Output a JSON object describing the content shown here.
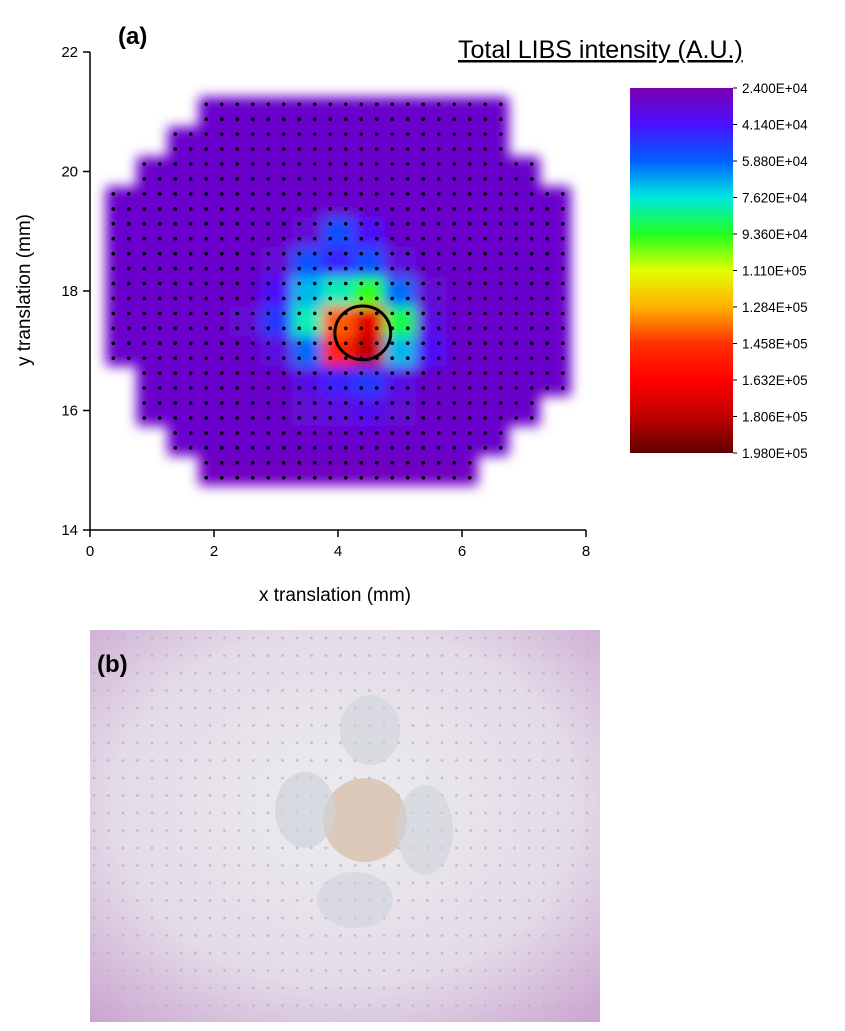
{
  "chart_data": {
    "type": "heatmap",
    "panel_label": "(a)",
    "xlabel": "x translation (mm)",
    "ylabel": "y translation (mm)",
    "xlim": [
      0,
      8
    ],
    "xticks": [
      0,
      2,
      4,
      6,
      8
    ],
    "ylim": [
      14,
      22
    ],
    "yticks": [
      14,
      16,
      18,
      20,
      22
    ],
    "x": [
      0.5,
      1.0,
      1.5,
      2.0,
      2.5,
      3.0,
      3.5,
      4.0,
      4.5,
      5.0,
      5.5,
      6.0,
      6.5,
      7.0,
      7.5
    ],
    "y": [
      15.0,
      15.5,
      16.0,
      16.5,
      17.0,
      17.5,
      18.0,
      18.5,
      19.0,
      19.5,
      20.0,
      20.5,
      21.0
    ],
    "z": [
      [
        null,
        null,
        null,
        28000,
        28000,
        28000,
        28000,
        28000,
        28000,
        28000,
        28000,
        28000,
        null,
        null,
        null
      ],
      [
        null,
        null,
        30000,
        30000,
        30000,
        30000,
        30000,
        30000,
        30000,
        30000,
        30000,
        30000,
        30000,
        null,
        null
      ],
      [
        null,
        30000,
        30000,
        30000,
        30000,
        30000,
        32000,
        34000,
        38000,
        32000,
        30000,
        30000,
        30000,
        30000,
        null
      ],
      [
        null,
        30000,
        30000,
        30000,
        30000,
        30000,
        36000,
        45000,
        50000,
        36000,
        30000,
        30000,
        30000,
        30000,
        30000
      ],
      [
        30000,
        30000,
        30000,
        30000,
        30000,
        35000,
        60000,
        150000,
        180000,
        70000,
        40000,
        30000,
        30000,
        30000,
        30000
      ],
      [
        30000,
        30000,
        30000,
        30000,
        32000,
        50000,
        80000,
        140000,
        170000,
        90000,
        35000,
        30000,
        30000,
        30000,
        30000
      ],
      [
        30000,
        30000,
        30000,
        30000,
        30000,
        40000,
        70000,
        80000,
        95000,
        60000,
        32000,
        30000,
        30000,
        30000,
        30000
      ],
      [
        30000,
        30000,
        30000,
        30000,
        30000,
        32000,
        55000,
        45000,
        55000,
        34000,
        30000,
        30000,
        30000,
        30000,
        30000
      ],
      [
        30000,
        30000,
        30000,
        30000,
        30000,
        30000,
        32000,
        55000,
        40000,
        30000,
        30000,
        30000,
        30000,
        30000,
        30000
      ],
      [
        30000,
        30000,
        30000,
        30000,
        30000,
        30000,
        30000,
        30000,
        30000,
        30000,
        30000,
        30000,
        30000,
        30000,
        30000
      ],
      [
        null,
        30000,
        30000,
        30000,
        30000,
        30000,
        30000,
        30000,
        30000,
        30000,
        30000,
        30000,
        30000,
        30000,
        null
      ],
      [
        null,
        null,
        30000,
        30000,
        30000,
        30000,
        30000,
        30000,
        30000,
        30000,
        30000,
        30000,
        30000,
        null,
        null
      ],
      [
        null,
        null,
        null,
        30000,
        30000,
        30000,
        30000,
        30000,
        30000,
        30000,
        30000,
        30000,
        30000,
        null,
        null
      ]
    ],
    "marked_region": {
      "x": 4.4,
      "y": 17.3,
      "r": 0.45
    },
    "colorbar": {
      "title": "Total LIBS intensity (A.U.)",
      "ticks": [
        {
          "value": 24000,
          "label": "2.400E+04"
        },
        {
          "value": 41400,
          "label": "4.140E+04"
        },
        {
          "value": 58800,
          "label": "5.880E+04"
        },
        {
          "value": 76200,
          "label": "7.620E+04"
        },
        {
          "value": 93600,
          "label": "9.360E+04"
        },
        {
          "value": 111000,
          "label": "1.110E+05"
        },
        {
          "value": 128400,
          "label": "1.284E+05"
        },
        {
          "value": 145800,
          "label": "1.458E+05"
        },
        {
          "value": 163200,
          "label": "1.632E+05"
        },
        {
          "value": 180600,
          "label": "1.806E+05"
        },
        {
          "value": 198000,
          "label": "1.980E+05"
        }
      ],
      "colors": [
        "#7a00b0",
        "#4a10ff",
        "#0060ff",
        "#00e8e0",
        "#20ff20",
        "#e0ff00",
        "#ffb000",
        "#ff3000",
        "#ff0000",
        "#c00000",
        "#600000"
      ]
    }
  },
  "photo": {
    "label": "(b)"
  }
}
